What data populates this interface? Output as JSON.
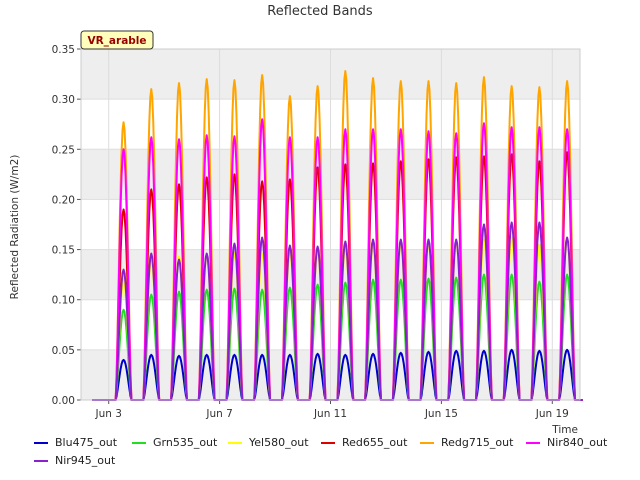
{
  "chart_data": {
    "type": "line",
    "title": "Reflected Bands",
    "ylabel": "Reflected Radiation (W/m2)",
    "xlabel": "Time",
    "annotation": "VR_arable",
    "ylim": [
      0,
      0.35
    ],
    "xlim": [
      "2023-06-02",
      "2023-06-20"
    ],
    "yticks": [
      "0.00",
      "0.05",
      "0.10",
      "0.15",
      "0.20",
      "0.25",
      "0.30",
      "0.35"
    ],
    "xticks": [
      {
        "date": "2023-06-03",
        "label": "Jun 3"
      },
      {
        "date": "2023-06-07",
        "label": "Jun 7"
      },
      {
        "date": "2023-06-11",
        "label": "Jun 11"
      },
      {
        "date": "2023-06-15",
        "label": "Jun 15"
      },
      {
        "date": "2023-06-19",
        "label": "Jun 19"
      }
    ],
    "grid": true,
    "banded_background": true,
    "legend_position": "bottom",
    "days": [
      "2023-06-03",
      "2023-06-04",
      "2023-06-05",
      "2023-06-06",
      "2023-06-07",
      "2023-06-08",
      "2023-06-09",
      "2023-06-10",
      "2023-06-11",
      "2023-06-12",
      "2023-06-13",
      "2023-06-14",
      "2023-06-15",
      "2023-06-16",
      "2023-06-17",
      "2023-06-18",
      "2023-06-19"
    ],
    "series": [
      {
        "name": "Blu475_out",
        "color": "#0000cc",
        "daily_peak": [
          0.04,
          0.045,
          0.044,
          0.045,
          0.045,
          0.045,
          0.045,
          0.046,
          0.045,
          0.046,
          0.047,
          0.048,
          0.049,
          0.049,
          0.05,
          0.049,
          0.05
        ]
      },
      {
        "name": "Grn535_out",
        "color": "#22dd22",
        "daily_peak": [
          0.09,
          0.105,
          0.108,
          0.11,
          0.111,
          0.11,
          0.112,
          0.115,
          0.117,
          0.12,
          0.12,
          0.121,
          0.122,
          0.125,
          0.125,
          0.118,
          0.125
        ]
      },
      {
        "name": "Yel580_out",
        "color": "#ffff00",
        "daily_peak": [
          0.12,
          0.14,
          0.143,
          0.145,
          0.147,
          0.146,
          0.148,
          0.15,
          0.152,
          0.155,
          0.156,
          0.157,
          0.158,
          0.16,
          0.162,
          0.155,
          0.16
        ]
      },
      {
        "name": "Red655_out",
        "color": "#dd0000",
        "daily_peak": [
          0.19,
          0.21,
          0.215,
          0.222,
          0.225,
          0.218,
          0.22,
          0.232,
          0.235,
          0.236,
          0.238,
          0.24,
          0.242,
          0.243,
          0.245,
          0.238,
          0.247
        ]
      },
      {
        "name": "Redg715_out",
        "color": "#ffa500",
        "daily_peak": [
          0.277,
          0.31,
          0.316,
          0.32,
          0.319,
          0.324,
          0.303,
          0.313,
          0.328,
          0.321,
          0.318,
          0.318,
          0.316,
          0.322,
          0.313,
          0.312,
          0.318
        ]
      },
      {
        "name": "Nir840_out",
        "color": "#ff00ff",
        "daily_peak": [
          0.25,
          0.262,
          0.26,
          0.264,
          0.263,
          0.28,
          0.262,
          0.262,
          0.27,
          0.27,
          0.27,
          0.268,
          0.266,
          0.276,
          0.272,
          0.272,
          0.27
        ]
      },
      {
        "name": "Nir945_out",
        "color": "#8822cc",
        "daily_peak": [
          0.13,
          0.146,
          0.14,
          0.146,
          0.156,
          0.162,
          0.154,
          0.153,
          0.158,
          0.16,
          0.16,
          0.16,
          0.16,
          0.175,
          0.177,
          0.177,
          0.162
        ]
      }
    ]
  }
}
